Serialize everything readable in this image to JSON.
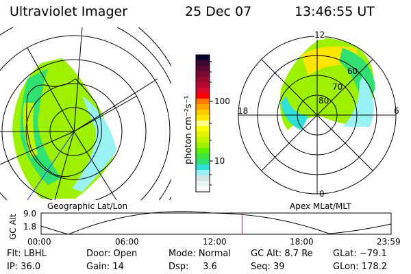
{
  "header": {
    "instrument": "Ultraviolet Imager",
    "date": "25 Dec 07",
    "time": "13:46:55 UT"
  },
  "left_map": {
    "label": "Geographic Lat/Lon"
  },
  "right_map": {
    "label": "Apex MLat/MLT",
    "mlt_labels": [
      "12",
      "18",
      "6",
      "0"
    ],
    "mlat_labels": [
      "80",
      "70",
      "60"
    ]
  },
  "colorbar": {
    "unit_label": "photon cm⁻²s⁻¹",
    "ticks": [
      "100",
      "10"
    ],
    "colors": [
      "#05052e",
      "#3a0a34",
      "#5c0a34",
      "#7a0a34",
      "#960a30",
      "#b40a30",
      "#d80c30",
      "#ff0000",
      "#ff7a00",
      "#ffa400",
      "#ffcc00",
      "#ffe600",
      "#ffff88",
      "#f8ff00",
      "#e4f400",
      "#c4f400",
      "#9cf000",
      "#5cf000",
      "#40e440",
      "#30e070",
      "#30e0d8",
      "#98f2f4",
      "#d2e4e4",
      "#e8f4ee",
      "#ffffff"
    ]
  },
  "altitude_plot": {
    "ylabel": "GC Alt",
    "yticks": [
      "9.0",
      "1.8"
    ],
    "xticks": [
      "00:00",
      "06:00",
      "12:00",
      "18:00",
      "23:59"
    ],
    "current_time_hours": 13.78,
    "marker_color": "#ff0000"
  },
  "info": {
    "row1": [
      "Flt: LBHL",
      "Door: Open",
      "Mode: Normal",
      "GC Alt: 8.7 Re",
      "GLat: −79.1"
    ],
    "row2": [
      "IP: 36.0",
      "Gain: 14",
      "Dsp:     3.6",
      "Seq: 39",
      "GLon: 178.2"
    ]
  }
}
